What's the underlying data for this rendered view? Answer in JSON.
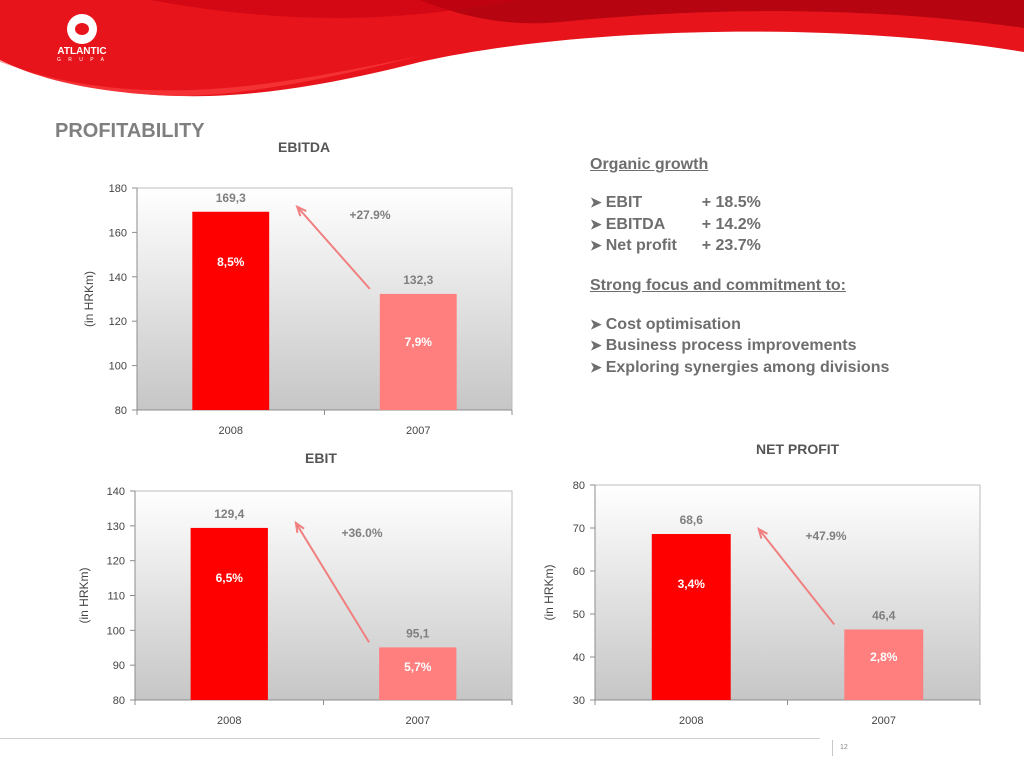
{
  "brand": {
    "name": "ATLANTIC",
    "subname": "G R U P A"
  },
  "page": {
    "title": "PROFITABILITY",
    "number": "12"
  },
  "colors": {
    "current": "#ff0000",
    "previous": "#ff7f7f",
    "arrow": "#f08080",
    "text_gray": "#7f7f7f",
    "label_gray": "#6e6e6e"
  },
  "notes": {
    "organic_heading": "Organic growth",
    "metrics": [
      {
        "name": "EBIT",
        "value": "+ 18.5%"
      },
      {
        "name": "EBITDA",
        "value": "+ 14.2%"
      },
      {
        "name": "Net profit",
        "value": "+ 23.7%"
      }
    ],
    "focus_heading": "Strong focus and commitment to:",
    "focus_items": [
      "Cost optimisation",
      "Business process improvements",
      "Exploring synergies among divisions"
    ]
  },
  "chart_data": [
    {
      "type": "bar",
      "title": "EBITDA",
      "ylabel": "(in HRKm)",
      "categories": [
        "2008",
        "2007"
      ],
      "values": [
        169.3,
        132.3
      ],
      "value_labels": [
        "169,3",
        "132,3"
      ],
      "margin_labels": [
        "8,5%",
        "7,9%"
      ],
      "growth_label": "+27.9%",
      "ylim": [
        80,
        180
      ],
      "yticks": [
        80,
        100,
        120,
        140,
        160,
        180
      ]
    },
    {
      "type": "bar",
      "title": "EBIT",
      "ylabel": "(in HRKm)",
      "categories": [
        "2008",
        "2007"
      ],
      "values": [
        129.4,
        95.1
      ],
      "value_labels": [
        "129,4",
        "95,1"
      ],
      "margin_labels": [
        "6,5%",
        "5,7%"
      ],
      "growth_label": "+36.0%",
      "ylim": [
        80,
        140
      ],
      "yticks": [
        80,
        90,
        100,
        110,
        120,
        130,
        140
      ]
    },
    {
      "type": "bar",
      "title": "NET PROFIT",
      "ylabel": "(in HRKm)",
      "categories": [
        "2008",
        "2007"
      ],
      "values": [
        68.6,
        46.4
      ],
      "value_labels": [
        "68,6",
        "46,4"
      ],
      "margin_labels": [
        "3,4%",
        "2,8%"
      ],
      "growth_label": "+47.9%",
      "ylim": [
        30,
        80
      ],
      "yticks": [
        30,
        40,
        50,
        60,
        70,
        80
      ]
    }
  ]
}
